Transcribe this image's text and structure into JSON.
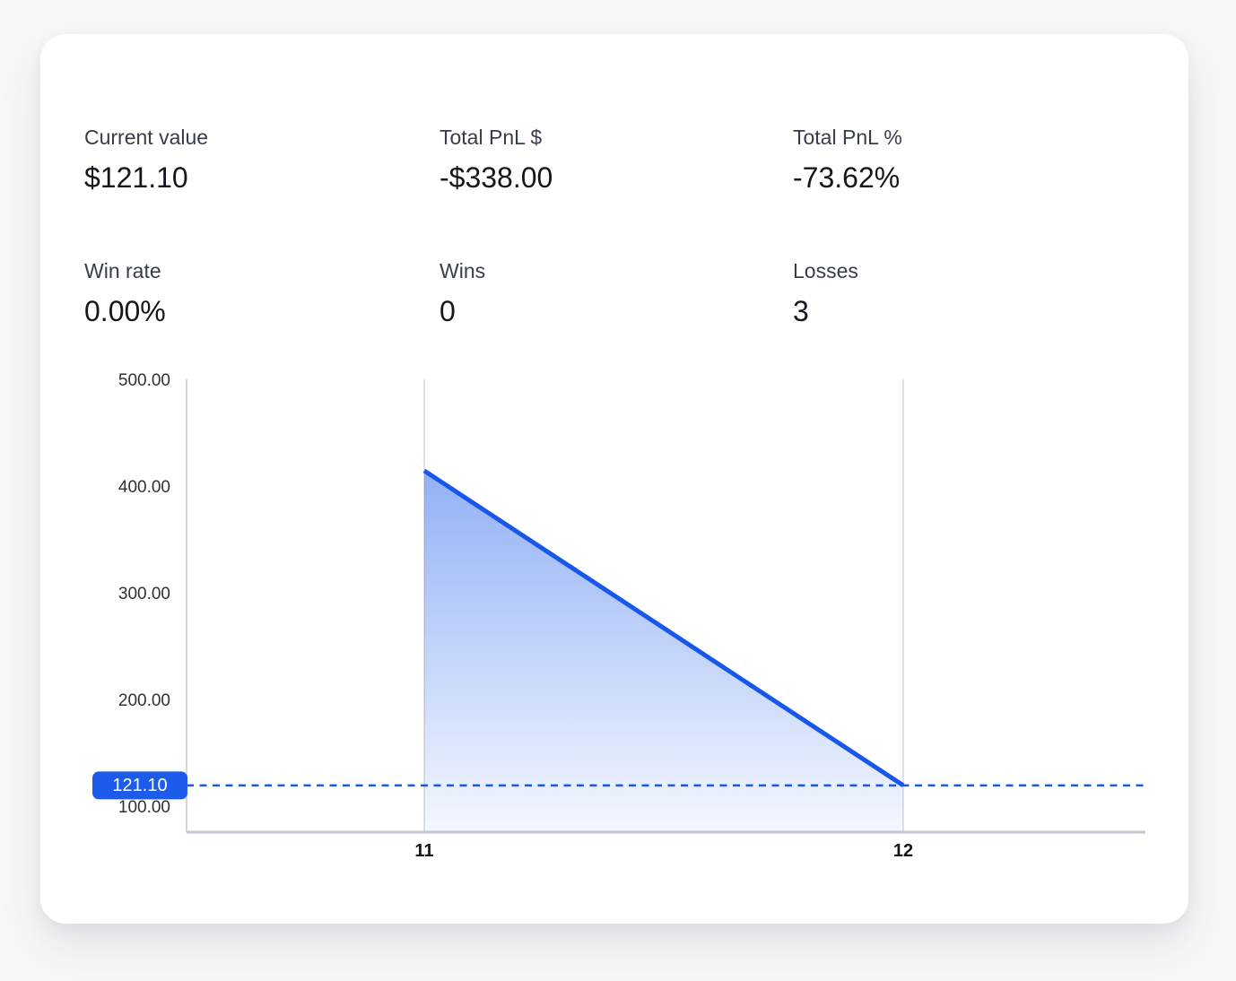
{
  "stats": {
    "rows": [
      [
        {
          "label": "Current value",
          "value": "$121.10"
        },
        {
          "label": "Total PnL $",
          "value": "-$338.00"
        },
        {
          "label": "Total PnL %",
          "value": "-73.62%"
        }
      ],
      [
        {
          "label": "Win rate",
          "value": "0.00%"
        },
        {
          "label": "Wins",
          "value": "0"
        },
        {
          "label": "Losses",
          "value": "3"
        }
      ]
    ]
  },
  "colors": {
    "accent_line": "#1757e9",
    "tag_background": "#1d5ceb",
    "area_fill_top": "rgba(37,99,235,0.5)",
    "area_fill_bottom": "rgba(37,99,235,0.05)",
    "page_background": "#f6f7f9",
    "card_background": "#ffffff"
  },
  "chart_data": {
    "type": "area",
    "series": [
      {
        "name": "portfolio-value",
        "x": [
          11,
          12
        ],
        "values": [
          416.0,
          121.1
        ]
      }
    ],
    "x_ticks": [
      "11",
      "12"
    ],
    "y_ticks": [
      "500.00",
      "400.00",
      "300.00",
      "200.00",
      "100.00"
    ],
    "ylim": [
      77,
      500
    ],
    "title": "",
    "xlabel": "",
    "ylabel": "",
    "legend": "none",
    "grid": "vertical-gridlines-at-x-ticks",
    "current_value": 121.1,
    "current_value_label": "121.10",
    "reference_line": {
      "type": "dotted-horizontal",
      "value": 121.1
    }
  }
}
